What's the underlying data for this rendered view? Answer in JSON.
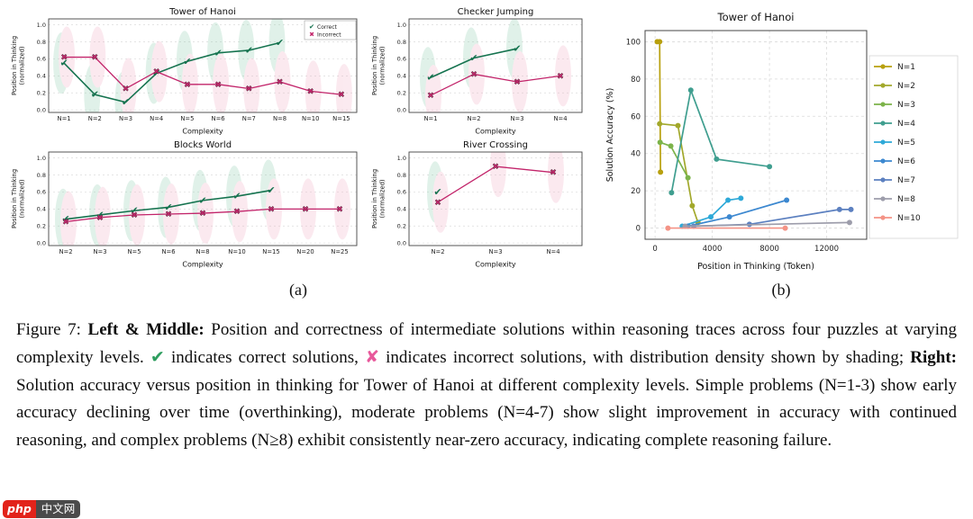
{
  "figure": {
    "panel_a_label": "(a)",
    "panel_b_label": "(b)"
  },
  "caption": {
    "segments": [
      {
        "text": "Figure 7: "
      },
      {
        "text": "Left & Middle:",
        "bold": true
      },
      {
        "text": " Position and correctness of intermediate solutions within reasoning traces across four puzzles at varying complexity levels. "
      },
      {
        "text": "✔",
        "color": "#2e9e5f"
      },
      {
        "text": " indicates correct solutions, "
      },
      {
        "text": "✘",
        "color": "#e8589b"
      },
      {
        "text": " indicates incorrect solutions, with distribution density shown by shading; "
      },
      {
        "text": "Right:",
        "bold": true
      },
      {
        "text": " Solution accuracy versus position in thinking for Tower of Hanoi at different complexity levels. Simple problems (N=1-3) show early accuracy declining over time (overthinking), moderate problems (N=4-7) show slight improvement in accuracy with continued reasoning, and complex problems (N≥8) exhibit consistently near-zero accuracy, indicating complete reasoning failure."
      }
    ]
  },
  "watermark": {
    "text_php": "php",
    "text_cn": "中文网"
  },
  "chart_data": [
    {
      "type": "line",
      "title": "Tower of Hanoi",
      "xlabel": "Complexity",
      "ylabel_line1": "Position in Thinking",
      "ylabel_line2": "(normalized)",
      "ylim": [
        0.0,
        1.0
      ],
      "yticks": [
        0.0,
        0.2,
        0.4,
        0.6,
        0.8,
        1.0
      ],
      "categories": [
        "N=1",
        "N=2",
        "N=3",
        "N=4",
        "N=5",
        "N=6",
        "N=7",
        "N=8",
        "N=10",
        "N=15"
      ],
      "legend": true,
      "legend_labels": [
        "Correct",
        "Incorrect"
      ],
      "colors": {
        "violin_correct": "#7fc9a5",
        "violin_incorrect": "#f0a8c0"
      },
      "series": [
        {
          "name": "Correct",
          "marker": "check",
          "color": "#15734f",
          "values": [
            0.55,
            0.18,
            0.09,
            0.43,
            0.57,
            0.67,
            0.7,
            0.79,
            null,
            null
          ]
        },
        {
          "name": "Incorrect",
          "marker": "x",
          "color": "#c2246a",
          "values": [
            0.62,
            0.62,
            0.25,
            0.45,
            0.3,
            0.3,
            0.25,
            0.33,
            0.22,
            0.18
          ]
        }
      ]
    },
    {
      "type": "line",
      "title": "Checker Jumping",
      "xlabel": "Complexity",
      "ylabel_line1": "Position in Thinking",
      "ylabel_line2": "(normalized)",
      "ylim": [
        0.0,
        1.0
      ],
      "yticks": [
        0.0,
        0.2,
        0.4,
        0.6,
        0.8,
        1.0
      ],
      "categories": [
        "N=1",
        "N=2",
        "N=3",
        "N=4"
      ],
      "legend": false,
      "colors": {
        "violin_correct": "#7fc9a5",
        "violin_incorrect": "#f0a8c0"
      },
      "series": [
        {
          "name": "Correct",
          "marker": "check",
          "color": "#15734f",
          "values": [
            0.38,
            0.61,
            0.72,
            null
          ]
        },
        {
          "name": "Incorrect",
          "marker": "x",
          "color": "#c2246a",
          "values": [
            0.17,
            0.42,
            0.33,
            0.4
          ]
        }
      ]
    },
    {
      "type": "line",
      "title": "Blocks World",
      "xlabel": "Complexity",
      "ylabel_line1": "Position in Thinking",
      "ylabel_line2": "(normalized)",
      "ylim": [
        0.0,
        1.0
      ],
      "yticks": [
        0.0,
        0.2,
        0.4,
        0.6,
        0.8,
        1.0
      ],
      "categories": [
        "N=2",
        "N=3",
        "N=5",
        "N=6",
        "N=8",
        "N=10",
        "N=15",
        "N=20",
        "N=25"
      ],
      "legend": false,
      "colors": {
        "violin_correct": "#7fc9a5",
        "violin_incorrect": "#f0a8c0"
      },
      "series": [
        {
          "name": "Correct",
          "marker": "check",
          "color": "#15734f",
          "values": [
            0.28,
            0.33,
            0.38,
            0.42,
            0.5,
            0.55,
            0.62,
            null,
            null
          ]
        },
        {
          "name": "Incorrect",
          "marker": "x",
          "color": "#c2246a",
          "values": [
            0.25,
            0.3,
            0.33,
            0.34,
            0.35,
            0.37,
            0.4,
            0.4,
            0.4
          ]
        }
      ]
    },
    {
      "type": "line",
      "title": "River Crossing",
      "xlabel": "Complexity",
      "ylabel_line1": "Position in Thinking",
      "ylabel_line2": "(normalized)",
      "ylim": [
        0.0,
        1.0
      ],
      "yticks": [
        0.0,
        0.2,
        0.4,
        0.6,
        0.8,
        1.0
      ],
      "categories": [
        "N=2",
        "N=3",
        "N=4"
      ],
      "legend": false,
      "colors": {
        "violin_correct": "#7fc9a5",
        "violin_incorrect": "#f0a8c0"
      },
      "series": [
        {
          "name": "Correct",
          "marker": "check",
          "color": "#15734f",
          "values": [
            0.6,
            null,
            null
          ]
        },
        {
          "name": "Incorrect",
          "marker": "x",
          "color": "#c2246a",
          "values": [
            0.48,
            0.9,
            0.83
          ]
        }
      ]
    },
    {
      "type": "line",
      "title": "Tower of Hanoi",
      "xlabel": "Position in Thinking (Token)",
      "ylabel": "Solution Accuracy (%)",
      "xlim": [
        -700,
        14800
      ],
      "ylim": [
        -6,
        106
      ],
      "xticks": [
        0,
        4000,
        8000,
        12000
      ],
      "yticks": [
        0,
        20,
        40,
        60,
        80,
        100
      ],
      "legend_position": "right",
      "series": [
        {
          "name": "N=1",
          "color": "#b8a00e",
          "points": [
            [
              150,
              100
            ],
            [
              320,
              100
            ],
            [
              380,
              30
            ]
          ]
        },
        {
          "name": "N=2",
          "color": "#a2a82b",
          "points": [
            [
              320,
              56
            ],
            [
              1600,
              55
            ],
            [
              2600,
              12
            ],
            [
              3000,
              3
            ]
          ]
        },
        {
          "name": "N=3",
          "color": "#7cb34a",
          "points": [
            [
              350,
              46
            ],
            [
              1100,
              44
            ],
            [
              2300,
              27
            ]
          ]
        },
        {
          "name": "N=4",
          "color": "#3f9e8f",
          "points": [
            [
              1150,
              19
            ],
            [
              2500,
              74
            ],
            [
              4300,
              37
            ],
            [
              8000,
              33
            ]
          ]
        },
        {
          "name": "N=5",
          "color": "#2ea9d8",
          "points": [
            [
              1900,
              1
            ],
            [
              3900,
              6
            ],
            [
              5100,
              15
            ],
            [
              6000,
              16
            ]
          ]
        },
        {
          "name": "N=6",
          "color": "#3c88d0",
          "points": [
            [
              2300,
              1
            ],
            [
              5200,
              6
            ],
            [
              9200,
              15
            ]
          ]
        },
        {
          "name": "N=7",
          "color": "#5c80c0",
          "points": [
            [
              2700,
              1
            ],
            [
              6600,
              2
            ],
            [
              12900,
              10
            ],
            [
              13700,
              10
            ]
          ]
        },
        {
          "name": "N=8",
          "color": "#9d9dab",
          "points": [
            [
              2100,
              1
            ],
            [
              13600,
              3
            ]
          ]
        },
        {
          "name": "N=10",
          "color": "#f49386",
          "points": [
            [
              900,
              0
            ],
            [
              9100,
              0
            ]
          ]
        }
      ]
    }
  ]
}
